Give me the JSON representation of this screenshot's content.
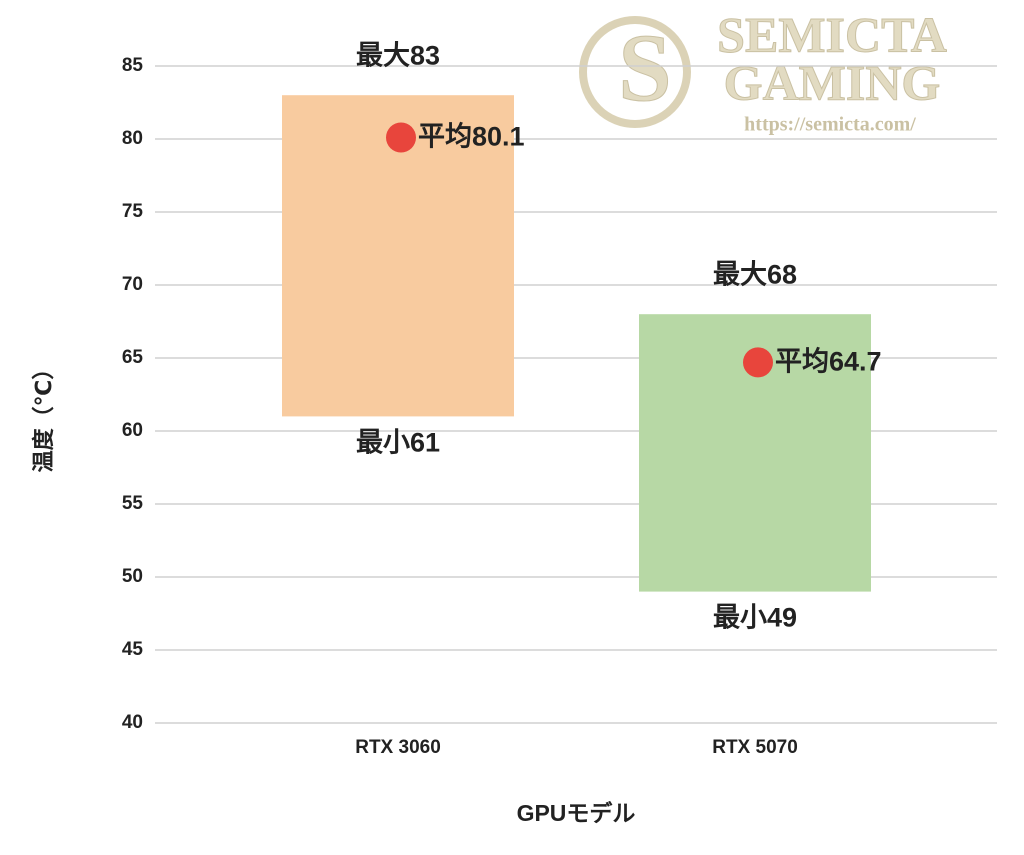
{
  "chart_data": {
    "type": "range",
    "y_label": "温度（℃）",
    "x_label": "GPUモデル",
    "categories": [
      "RTX 3060",
      "RTX 5070"
    ],
    "bars": {
      "low": [
        61,
        49
      ],
      "high": [
        83,
        68
      ],
      "low_labels": [
        "最小61",
        "最小49"
      ],
      "high_labels": [
        "最大83",
        "最大68"
      ],
      "colors": [
        "#f8cb9f",
        "#b7d8a5"
      ]
    },
    "average": {
      "values": [
        80.1,
        64.7
      ],
      "value_labels": [
        "平均80.1",
        "平均64.7"
      ],
      "color": "#e8453c"
    },
    "ylim": [
      40,
      85
    ],
    "yticks": [
      40,
      45,
      50,
      55,
      60,
      65,
      70,
      75,
      80,
      85
    ],
    "grid": true
  },
  "watermark": {
    "line1": "SEMICTA",
    "line2": "GAMING",
    "url": "https://semicta.com/"
  }
}
